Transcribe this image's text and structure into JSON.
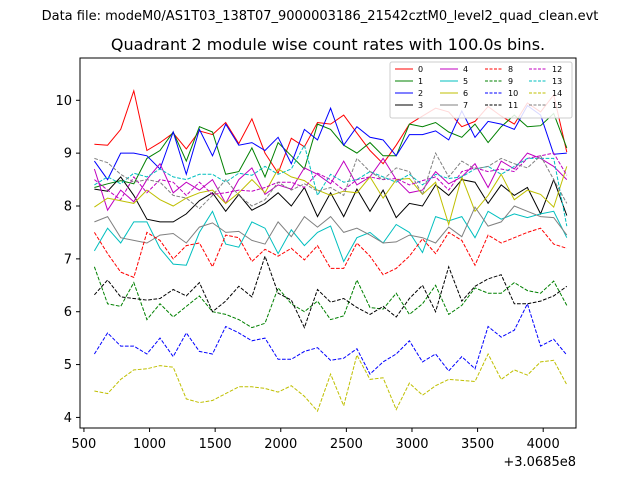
{
  "suptitle": "Data file: modeM0/AS1T03_138T07_9000003186_21542cztM0_level2_quad_clean.evt",
  "chart_data": {
    "type": "line",
    "title": "Quadrant 2 module wise count rates with 100.0s bins.",
    "xlabel": "",
    "ylabel": "",
    "x_offset_label": "+3.0685e8",
    "xlim": [
      470,
      4250
    ],
    "ylim": [
      3.8,
      10.8
    ],
    "xticks": [
      500,
      1000,
      1500,
      2000,
      2500,
      3000,
      3500,
      4000
    ],
    "yticks": [
      4,
      5,
      6,
      7,
      8,
      9,
      10
    ],
    "grid": false,
    "legend_position": "top-right",
    "x": [
      580,
      680,
      780,
      880,
      980,
      1080,
      1180,
      1280,
      1380,
      1480,
      1580,
      1680,
      1780,
      1880,
      1980,
      2080,
      2180,
      2280,
      2380,
      2480,
      2580,
      2680,
      2780,
      2880,
      2980,
      3080,
      3180,
      3280,
      3380,
      3480,
      3580,
      3680,
      3780,
      3880,
      3980,
      4080,
      4180
    ],
    "series": [
      {
        "name": "0",
        "color": "#ff0000",
        "style": "solid",
        "values": [
          9.17,
          9.15,
          9.45,
          10.18,
          9.05,
          9.2,
          9.38,
          9.08,
          9.42,
          9.35,
          9.58,
          9.18,
          9.65,
          9.0,
          8.62,
          9.28,
          9.12,
          9.58,
          9.55,
          9.72,
          9.38,
          9.05,
          8.8,
          9.15,
          9.55,
          9.7,
          9.85,
          9.78,
          9.5,
          9.6,
          9.88,
          9.7,
          9.55,
          9.95,
          9.78,
          10.1,
          9.02
        ]
      },
      {
        "name": "1",
        "color": "#008000",
        "style": "solid",
        "values": [
          8.35,
          8.42,
          8.48,
          8.42,
          8.9,
          9.05,
          9.4,
          8.85,
          9.5,
          9.4,
          8.6,
          8.65,
          9.1,
          8.55,
          9.2,
          8.95,
          8.7,
          9.55,
          9.45,
          9.15,
          9.0,
          9.2,
          8.95,
          8.95,
          9.55,
          9.5,
          9.58,
          9.4,
          9.3,
          9.55,
          9.2,
          9.5,
          9.72,
          9.5,
          9.52,
          9.75,
          9.1
        ]
      },
      {
        "name": "2",
        "color": "#0000ff",
        "style": "solid",
        "values": [
          8.85,
          8.5,
          9.0,
          9.0,
          8.95,
          8.7,
          9.4,
          8.6,
          9.45,
          8.95,
          9.55,
          9.15,
          9.2,
          9.05,
          9.3,
          8.8,
          9.45,
          9.25,
          9.85,
          9.15,
          9.5,
          9.3,
          9.25,
          8.95,
          9.35,
          9.35,
          9.42,
          9.25,
          9.8,
          9.3,
          9.6,
          9.55,
          9.45,
          9.9,
          9.72,
          8.98,
          9.0
        ]
      },
      {
        "name": "3",
        "color": "#000000",
        "style": "solid",
        "values": [
          8.32,
          8.28,
          8.55,
          8.2,
          7.75,
          7.7,
          7.7,
          7.85,
          8.1,
          8.25,
          7.9,
          8.22,
          7.92,
          8.05,
          8.25,
          8.0,
          8.35,
          7.8,
          8.25,
          7.8,
          8.32,
          7.9,
          8.3,
          7.78,
          8.05,
          8.0,
          8.4,
          8.2,
          8.5,
          8.45,
          8.05,
          8.4,
          8.2,
          8.35,
          7.85,
          8.5,
          7.82
        ]
      },
      {
        "name": "4",
        "color": "#c000c0",
        "style": "solid",
        "values": [
          8.7,
          7.92,
          8.3,
          8.08,
          8.5,
          8.8,
          8.25,
          8.45,
          8.3,
          8.5,
          8.05,
          8.5,
          8.72,
          8.22,
          8.4,
          8.32,
          8.72,
          8.6,
          8.42,
          8.85,
          8.4,
          8.55,
          8.9,
          8.5,
          8.25,
          8.3,
          8.65,
          8.42,
          8.55,
          8.8,
          8.35,
          8.85,
          8.7,
          9.0,
          8.9,
          8.75,
          8.5
        ]
      },
      {
        "name": "5",
        "color": "#00bfbf",
        "style": "solid",
        "values": [
          7.15,
          7.58,
          7.3,
          7.7,
          7.7,
          7.2,
          6.9,
          6.88,
          7.5,
          7.9,
          7.28,
          7.22,
          7.7,
          7.58,
          7.1,
          7.55,
          7.25,
          7.5,
          7.62,
          6.95,
          7.4,
          7.5,
          7.3,
          7.65,
          7.5,
          7.12,
          7.8,
          7.72,
          7.8,
          7.4,
          7.9,
          7.75,
          7.85,
          7.78,
          7.85,
          7.9,
          7.4
        ]
      },
      {
        "name": "6",
        "color": "#bfbf00",
        "style": "solid",
        "values": [
          7.98,
          8.15,
          8.1,
          8.05,
          8.3,
          8.12,
          8.0,
          8.15,
          8.25,
          8.3,
          8.05,
          8.25,
          8.5,
          8.25,
          8.7,
          8.55,
          8.48,
          8.3,
          8.2,
          8.28,
          8.25,
          8.55,
          8.15,
          8.5,
          8.52,
          8.22,
          8.45,
          7.65,
          8.55,
          7.9,
          8.2,
          8.6,
          8.12,
          8.3,
          8.22,
          7.98,
          8.75
        ]
      },
      {
        "name": "7",
        "color": "#808080",
        "style": "solid",
        "values": [
          7.7,
          7.8,
          7.4,
          7.35,
          7.3,
          7.45,
          7.48,
          7.3,
          7.6,
          7.68,
          7.5,
          7.52,
          7.35,
          7.28,
          7.7,
          7.42,
          7.8,
          7.6,
          7.8,
          7.5,
          7.58,
          7.45,
          7.3,
          7.32,
          7.45,
          7.4,
          7.3,
          7.6,
          7.42,
          7.98,
          7.62,
          7.7,
          8.0,
          7.9,
          7.8,
          7.78,
          7.45
        ]
      },
      {
        "name": "8",
        "color": "#ff0000",
        "style": "dashed",
        "values": [
          7.5,
          7.1,
          6.75,
          6.65,
          7.5,
          7.35,
          7.0,
          7.25,
          7.3,
          6.85,
          7.45,
          7.4,
          6.95,
          7.18,
          7.05,
          7.2,
          6.98,
          7.25,
          6.82,
          6.82,
          7.3,
          7.05,
          6.7,
          6.82,
          7.05,
          7.38,
          7.1,
          7.5,
          7.35,
          6.88,
          7.45,
          7.3,
          7.4,
          7.5,
          7.58,
          7.28,
          7.2
        ]
      },
      {
        "name": "9",
        "color": "#008000",
        "style": "dashed",
        "values": [
          6.85,
          6.15,
          6.1,
          6.55,
          5.85,
          6.15,
          5.9,
          6.1,
          6.3,
          6.0,
          5.95,
          5.85,
          5.7,
          5.78,
          6.45,
          6.15,
          6.0,
          6.2,
          5.85,
          5.92,
          6.6,
          6.08,
          6.05,
          6.35,
          5.95,
          6.15,
          6.5,
          5.95,
          6.12,
          6.45,
          6.35,
          6.35,
          6.55,
          6.4,
          6.35,
          6.58,
          6.12
        ]
      },
      {
        "name": "10",
        "color": "#0000ff",
        "style": "dashed",
        "values": [
          5.2,
          5.6,
          5.35,
          5.35,
          5.2,
          5.5,
          5.15,
          5.6,
          5.25,
          5.2,
          5.72,
          5.6,
          5.45,
          5.5,
          5.1,
          5.1,
          5.25,
          5.32,
          5.08,
          5.12,
          5.3,
          4.82,
          5.05,
          5.2,
          5.45,
          5.05,
          5.2,
          4.88,
          5.15,
          4.92,
          5.72,
          5.52,
          5.65,
          6.15,
          5.35,
          5.48,
          5.18
        ]
      },
      {
        "name": "11",
        "color": "#000000",
        "style": "dashed",
        "values": [
          6.32,
          6.6,
          6.28,
          6.25,
          6.22,
          6.25,
          6.42,
          6.3,
          6.55,
          6.0,
          6.2,
          6.48,
          6.28,
          7.05,
          6.35,
          6.22,
          5.7,
          6.42,
          6.18,
          6.25,
          6.08,
          5.95,
          6.1,
          5.9,
          6.25,
          6.5,
          6.0,
          6.85,
          6.2,
          6.48,
          6.62,
          6.7,
          6.15,
          6.15,
          6.2,
          6.3,
          6.48
        ]
      },
      {
        "name": "12",
        "color": "#c000c0",
        "style": "dashed",
        "values": [
          8.5,
          8.3,
          8.12,
          8.55,
          8.25,
          8.5,
          8.45,
          8.2,
          8.45,
          8.22,
          8.25,
          8.3,
          8.28,
          8.35,
          8.45,
          8.45,
          8.35,
          8.62,
          8.5,
          8.3,
          8.5,
          8.55,
          8.5,
          8.52,
          8.4,
          8.48,
          8.55,
          8.3,
          8.65,
          8.72,
          8.65,
          8.7,
          8.65,
          8.9,
          8.95,
          9.0,
          8.58
        ]
      },
      {
        "name": "13",
        "color": "#00bfbf",
        "style": "dashed",
        "values": [
          8.4,
          8.55,
          8.42,
          8.62,
          8.55,
          8.7,
          8.55,
          8.5,
          8.6,
          8.6,
          8.45,
          8.62,
          8.58,
          8.75,
          8.6,
          8.7,
          9.15,
          8.2,
          8.6,
          8.45,
          8.5,
          8.65,
          8.55,
          8.45,
          8.6,
          8.4,
          8.6,
          8.52,
          8.55,
          8.7,
          8.75,
          8.6,
          8.75,
          8.9,
          8.9,
          8.9,
          7.62
        ]
      },
      {
        "name": "14",
        "color": "#bfbf00",
        "style": "dashed",
        "values": [
          4.5,
          4.45,
          4.72,
          4.9,
          4.92,
          4.98,
          4.95,
          4.35,
          4.28,
          4.32,
          4.45,
          4.58,
          4.58,
          4.55,
          4.48,
          4.6,
          4.4,
          4.12,
          4.82,
          4.22,
          5.18,
          4.72,
          4.75,
          4.15,
          4.65,
          4.42,
          4.6,
          4.72,
          4.7,
          4.68,
          5.2,
          4.72,
          4.9,
          4.8,
          5.05,
          5.08,
          4.62
        ]
      },
      {
        "name": "15",
        "color": "#808080",
        "style": "dashed",
        "values": [
          8.9,
          8.82,
          8.6,
          8.45,
          8.5,
          8.45,
          8.2,
          8.15,
          7.95,
          8.2,
          8.5,
          8.2,
          8.0,
          8.12,
          8.45,
          8.3,
          8.42,
          8.28,
          8.35,
          8.2,
          8.9,
          8.65,
          8.5,
          8.72,
          8.65,
          8.22,
          9.0,
          8.55,
          8.85,
          8.7,
          8.75,
          8.9,
          8.8,
          8.72,
          8.95,
          8.5,
          8.05
        ]
      }
    ]
  }
}
